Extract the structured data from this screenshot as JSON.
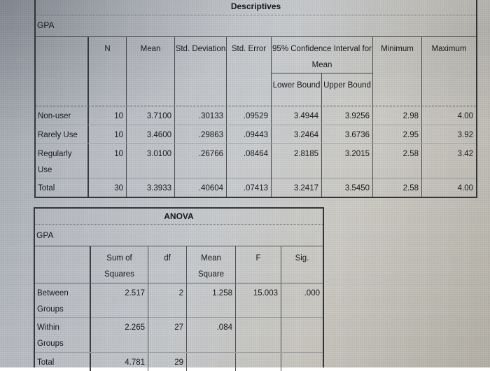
{
  "descriptives": {
    "title": "Descriptives",
    "variable": "GPA",
    "headers": {
      "n": "N",
      "mean": "Mean",
      "std_deviation": "Std. Deviation",
      "std_error": "Std. Error",
      "ci_group": "95% Confidence Interval for Mean",
      "lower_bound": "Lower Bound",
      "upper_bound": "Upper Bound",
      "minimum": "Minimum",
      "maximum": "Maximum"
    },
    "rows": [
      {
        "label": "Non-user",
        "n": "10",
        "mean": "3.7100",
        "std_deviation": ".30133",
        "std_error": ".09529",
        "lower_bound": "3.4944",
        "upper_bound": "3.9256",
        "minimum": "2.98",
        "maximum": "4.00"
      },
      {
        "label": "Rarely Use",
        "n": "10",
        "mean": "3.4600",
        "std_deviation": ".29863",
        "std_error": ".09443",
        "lower_bound": "3.2464",
        "upper_bound": "3.6736",
        "minimum": "2.95",
        "maximum": "3.92"
      },
      {
        "label": "Regularly Use",
        "n": "10",
        "mean": "3.0100",
        "std_deviation": ".26766",
        "std_error": ".08464",
        "lower_bound": "2.8185",
        "upper_bound": "3.2015",
        "minimum": "2.58",
        "maximum": "3.42"
      },
      {
        "label": "Total",
        "n": "30",
        "mean": "3.3933",
        "std_deviation": ".40604",
        "std_error": ".07413",
        "lower_bound": "3.2417",
        "upper_bound": "3.5450",
        "minimum": "2.58",
        "maximum": "4.00"
      }
    ]
  },
  "anova": {
    "title": "ANOVA",
    "variable": "GPA",
    "headers": {
      "sum_of_squares": "Sum of Squares",
      "df": "df",
      "mean_square": "Mean Square",
      "f": "F",
      "sig": "Sig."
    },
    "rows": [
      {
        "label": "Between Groups",
        "sum_of_squares": "2.517",
        "df": "2",
        "mean_square": "1.258",
        "f": "15.003",
        "sig": ".000"
      },
      {
        "label": "Within Groups",
        "sum_of_squares": "2.265",
        "df": "27",
        "mean_square": ".084",
        "f": "",
        "sig": ""
      },
      {
        "label": "Total",
        "sum_of_squares": "4.781",
        "df": "29",
        "mean_square": "",
        "f": "",
        "sig": ""
      }
    ]
  },
  "colors": {
    "text": "#17191c",
    "border_dark": "#33363a",
    "border_medium": "#4c5054",
    "border_light": "#9aa0a6",
    "screen_cool": "#b5b9c0",
    "screen_warm": "#b2aea3"
  }
}
